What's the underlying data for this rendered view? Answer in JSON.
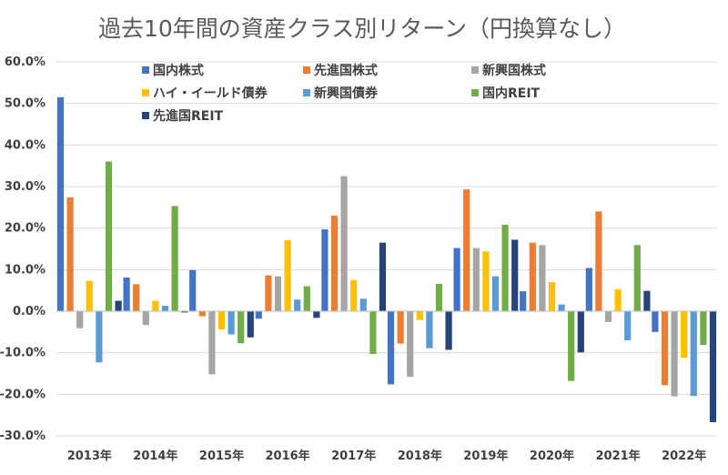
{
  "chart_data": {
    "type": "bar",
    "title": "過去10年間の資産クラス別リターン（円換算なし）",
    "xlabel": "",
    "ylabel": "",
    "categories": [
      "2013年",
      "2014年",
      "2015年",
      "2016年",
      "2017年",
      "2018年",
      "2019年",
      "2020年",
      "2021年",
      "2022年"
    ],
    "ylim": [
      -30,
      60
    ],
    "yticks": [
      "-30.0%",
      "-20.0%",
      "-10.0%",
      "0.0%",
      "10.0%",
      "20.0%",
      "30.0%",
      "40.0%",
      "50.0%",
      "60.0%"
    ],
    "ytick_values": [
      -30,
      -20,
      -10,
      0,
      10,
      20,
      30,
      40,
      50,
      60
    ],
    "grid": true,
    "legend_position": "top",
    "series": [
      {
        "name": "国内株式",
        "color": "#4472c4",
        "values": [
          51.5,
          8.1,
          9.9,
          -1.8,
          19.7,
          -17.6,
          15.2,
          4.8,
          10.4,
          -5.0
        ]
      },
      {
        "name": "先進国株式",
        "color": "#ed7d31",
        "values": [
          27.4,
          6.5,
          -1.2,
          8.6,
          23.0,
          -7.8,
          29.3,
          16.5,
          24.0,
          -17.8
        ]
      },
      {
        "name": "新興国株式",
        "color": "#a5a5a5",
        "values": [
          -4.1,
          -3.3,
          -15.2,
          8.4,
          32.5,
          -15.8,
          15.2,
          15.9,
          -2.6,
          -20.5
        ]
      },
      {
        "name": "ハイ・イールド債券",
        "color": "#ffc000",
        "values": [
          7.3,
          2.5,
          -4.4,
          17.1,
          7.5,
          -2.1,
          14.4,
          7.0,
          5.3,
          -11.2
        ]
      },
      {
        "name": "新興国債券",
        "color": "#5b9bd5",
        "values": [
          -12.3,
          1.3,
          -5.6,
          2.8,
          3.0,
          -8.9,
          8.4,
          1.6,
          -7.0,
          -20.4
        ]
      },
      {
        "name": "国内REIT",
        "color": "#70ad47",
        "values": [
          36.0,
          25.3,
          -7.7,
          6.0,
          -10.3,
          6.6,
          20.8,
          -16.8,
          15.9,
          -8.1
        ]
      },
      {
        "name": "先進国REIT",
        "color": "#264478",
        "values": [
          2.5,
          -0.3,
          -6.3,
          -1.6,
          16.5,
          -9.3,
          17.2,
          -9.9,
          4.9,
          -26.7
        ]
      }
    ]
  }
}
